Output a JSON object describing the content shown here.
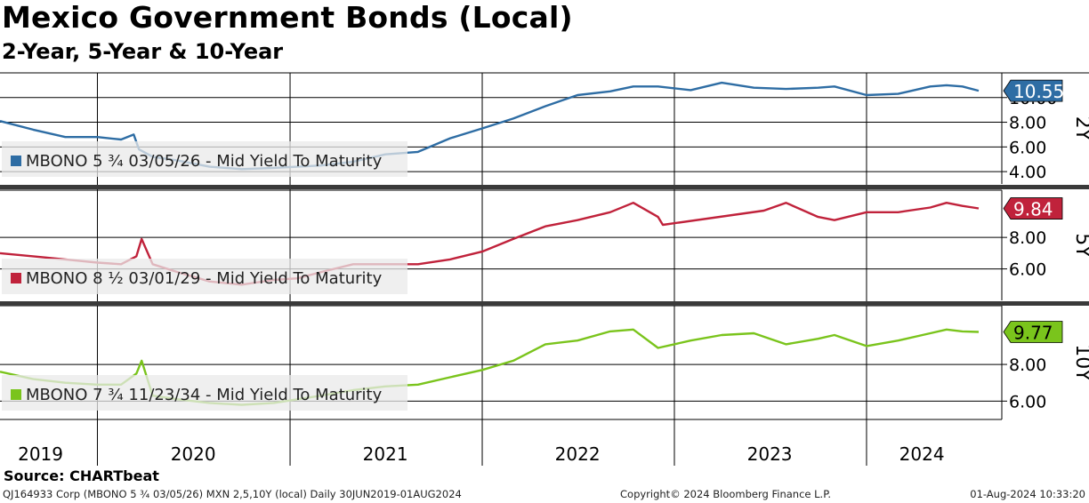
{
  "header": {
    "title": "Mexico Government Bonds (Local)",
    "subtitle": "2-Year, 5-Year & 10-Year"
  },
  "footer": {
    "source": "Source: CHARTbeat",
    "security": "QJ164933 Corp (MBONO 5 ¾ 03/05/26) MXN 2,5,10Y (local)  Daily 30JUN2019-01AUG2024",
    "copyright": "Copyright© 2024 Bloomberg Finance L.P.",
    "timestamp": "01-Aug-2024 10:33:20"
  },
  "chart_data": [
    {
      "type": "line",
      "panel_label": "2Y",
      "ylim": [
        3.0,
        12.0
      ],
      "yticks": [
        "4.00",
        "6.00",
        "8.00",
        "10.00"
      ],
      "legend": "MBONO 5 ¾ 03/05/26 - Mid Yield To Maturity",
      "color": "#2e6da4",
      "last_value": "10.55",
      "series": [
        {
          "name": "MBONO 5 ¾ 03/05/26 - Mid Yield To Maturity",
          "x": [
            "2019-06-30",
            "2019-09-01",
            "2019-11-01",
            "2020-01-01",
            "2020-02-15",
            "2020-03-10",
            "2020-03-20",
            "2020-04-15",
            "2020-06-01",
            "2020-08-01",
            "2020-10-01",
            "2020-12-01",
            "2021-01-15",
            "2021-03-01",
            "2021-05-01",
            "2021-07-01",
            "2021-09-01",
            "2021-11-01",
            "2022-01-01",
            "2022-03-01",
            "2022-05-01",
            "2022-07-01",
            "2022-09-01",
            "2022-10-15",
            "2022-12-01",
            "2023-02-01",
            "2023-04-01",
            "2023-06-01",
            "2023-08-01",
            "2023-10-01",
            "2023-11-01",
            "2024-01-01",
            "2024-03-01",
            "2024-05-01",
            "2024-06-01",
            "2024-07-01",
            "2024-08-01"
          ],
          "values": [
            8.1,
            7.4,
            6.8,
            6.8,
            6.6,
            7.0,
            5.8,
            5.2,
            4.9,
            4.4,
            4.2,
            4.3,
            4.4,
            4.5,
            4.8,
            5.4,
            5.6,
            6.7,
            7.5,
            8.3,
            9.3,
            10.2,
            10.5,
            10.9,
            10.9,
            10.6,
            11.2,
            10.8,
            10.7,
            10.8,
            10.9,
            10.2,
            10.3,
            10.9,
            11.0,
            10.9,
            10.55
          ]
        }
      ]
    },
    {
      "type": "line",
      "panel_label": "5Y",
      "ylim": [
        4.0,
        11.0
      ],
      "yticks": [
        "6.00",
        "8.00"
      ],
      "legend": "MBONO 8 ½ 03/01/29 - Mid Yield To Maturity",
      "color": "#c0223b",
      "last_value": "9.84",
      "series": [
        {
          "name": "MBONO 8 ½ 03/01/29 - Mid Yield To Maturity",
          "x": [
            "2019-06-30",
            "2019-09-01",
            "2019-11-01",
            "2020-01-01",
            "2020-02-15",
            "2020-03-15",
            "2020-03-25",
            "2020-04-15",
            "2020-06-01",
            "2020-08-01",
            "2020-10-01",
            "2020-12-01",
            "2021-01-15",
            "2021-03-01",
            "2021-05-01",
            "2021-07-01",
            "2021-09-01",
            "2021-11-01",
            "2022-01-01",
            "2022-03-01",
            "2022-05-01",
            "2022-07-01",
            "2022-09-01",
            "2022-10-15",
            "2022-12-01",
            "2022-12-10",
            "2023-06-20",
            "2023-08-01",
            "2023-10-01",
            "2023-11-01",
            "2024-01-01",
            "2024-03-01",
            "2024-05-01",
            "2024-06-01",
            "2024-07-01",
            "2024-08-01"
          ],
          "values": [
            7.0,
            6.8,
            6.6,
            6.4,
            6.3,
            6.8,
            7.9,
            6.3,
            5.8,
            5.2,
            5.0,
            5.3,
            5.4,
            5.8,
            6.3,
            6.3,
            6.3,
            6.6,
            7.1,
            7.9,
            8.7,
            9.1,
            9.6,
            10.2,
            9.3,
            8.8,
            9.7,
            10.2,
            9.3,
            9.1,
            9.6,
            9.6,
            9.9,
            10.2,
            10.0,
            9.84
          ]
        }
      ]
    },
    {
      "type": "line",
      "panel_label": "10Y",
      "ylim": [
        5.0,
        11.2
      ],
      "yticks": [
        "6.00",
        "8.00"
      ],
      "legend": "MBONO 7 ¾ 11/23/34 - Mid Yield To Maturity",
      "color": "#7ac41c",
      "last_value": "9.77",
      "series": [
        {
          "name": "MBONO 7 ¾ 11/23/34 - Mid Yield To Maturity",
          "x": [
            "2019-06-30",
            "2019-09-01",
            "2019-11-01",
            "2020-01-01",
            "2020-02-15",
            "2020-03-15",
            "2020-03-25",
            "2020-04-15",
            "2020-06-01",
            "2020-08-01",
            "2020-10-01",
            "2020-12-01",
            "2021-01-15",
            "2021-03-01",
            "2021-05-01",
            "2021-07-01",
            "2021-09-01",
            "2021-11-01",
            "2022-01-01",
            "2022-03-01",
            "2022-05-01",
            "2022-07-01",
            "2022-09-01",
            "2022-10-15",
            "2022-12-01",
            "2023-02-01",
            "2023-04-01",
            "2023-06-01",
            "2023-08-01",
            "2023-10-01",
            "2023-11-01",
            "2024-01-01",
            "2024-03-01",
            "2024-05-01",
            "2024-06-01",
            "2024-07-01",
            "2024-08-01"
          ],
          "values": [
            7.6,
            7.2,
            7.0,
            6.9,
            6.9,
            7.5,
            8.2,
            6.3,
            6.1,
            5.9,
            5.8,
            5.9,
            6.1,
            6.3,
            6.6,
            6.8,
            6.9,
            7.3,
            7.7,
            8.2,
            9.1,
            9.3,
            9.8,
            9.9,
            8.9,
            9.3,
            9.6,
            9.7,
            9.1,
            9.4,
            9.6,
            9.0,
            9.3,
            9.7,
            9.9,
            9.8,
            9.77
          ]
        }
      ]
    }
  ],
  "xaxis": {
    "years": [
      "2019",
      "2020",
      "2021",
      "2022",
      "2023",
      "2024"
    ],
    "start": "2019-06-30",
    "end": "2024-08-01"
  }
}
